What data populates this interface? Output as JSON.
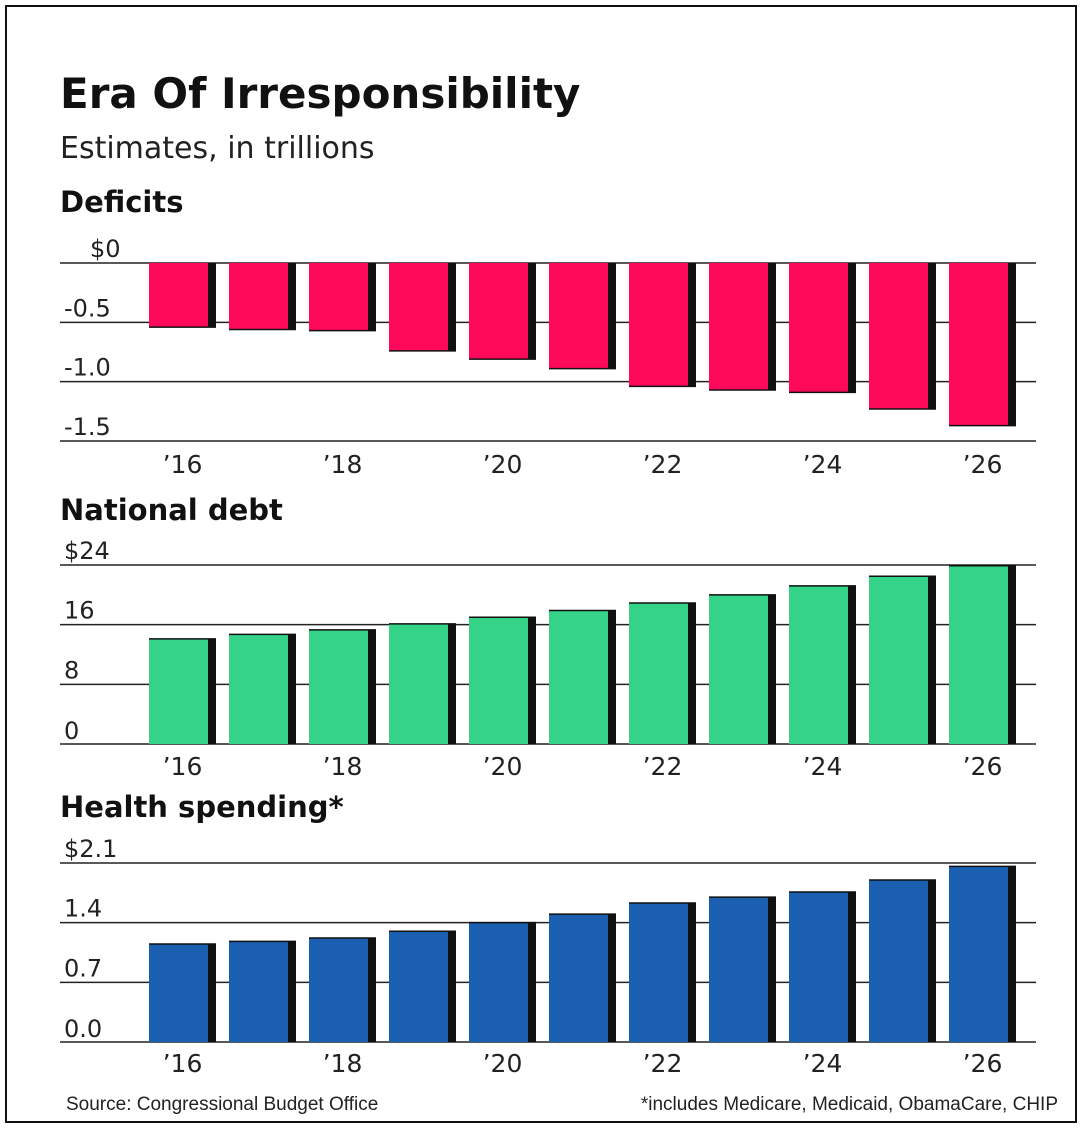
{
  "title": "Era Of Irresponsibility",
  "subtitle": "Estimates, in trillions",
  "source": "Source: Congressional Budget Office",
  "footnote": "*includes Medicare, Medicaid, ObamaCare, CHIP",
  "chart_data": [
    {
      "type": "bar",
      "title": "Deficits",
      "color": "#ff0a5a",
      "categories": [
        "2016",
        "2017",
        "2018",
        "2019",
        "2020",
        "2021",
        "2022",
        "2023",
        "2024",
        "2025",
        "2026"
      ],
      "x_tick_labels": [
        "’16",
        "",
        "’18",
        "",
        "’20",
        "",
        "’22",
        "",
        "’24",
        "",
        "’26"
      ],
      "values": [
        -0.54,
        -0.56,
        -0.57,
        -0.74,
        -0.81,
        -0.89,
        -1.04,
        -1.07,
        -1.09,
        -1.23,
        -1.37
      ],
      "y_ticks": [
        0,
        -0.5,
        -1.0,
        -1.5
      ],
      "y_tick_labels": [
        "$0",
        "-0.5",
        "-1.0",
        "-1.5"
      ],
      "ylim": [
        -1.5,
        0
      ]
    },
    {
      "type": "bar",
      "title": "National debt",
      "color": "#34d388",
      "categories": [
        "2016",
        "2017",
        "2018",
        "2019",
        "2020",
        "2021",
        "2022",
        "2023",
        "2024",
        "2025",
        "2026"
      ],
      "x_tick_labels": [
        "’16",
        "",
        "’18",
        "",
        "’20",
        "",
        "’22",
        "",
        "’24",
        "",
        "’26"
      ],
      "values": [
        14.1,
        14.7,
        15.3,
        16.1,
        17.0,
        17.9,
        18.9,
        20.0,
        21.2,
        22.5,
        23.9
      ],
      "y_ticks": [
        0,
        8,
        16,
        24
      ],
      "y_tick_labels": [
        "0",
        "8",
        "16",
        "$24"
      ],
      "ylim": [
        0,
        24
      ]
    },
    {
      "type": "bar",
      "title": "Health spending*",
      "color": "#1a5fb0",
      "categories": [
        "2016",
        "2017",
        "2018",
        "2019",
        "2020",
        "2021",
        "2022",
        "2023",
        "2024",
        "2025",
        "2026"
      ],
      "x_tick_labels": [
        "’16",
        "",
        "’18",
        "",
        "’20",
        "",
        "’22",
        "",
        "’24",
        "",
        "’26"
      ],
      "values": [
        1.15,
        1.18,
        1.22,
        1.3,
        1.4,
        1.5,
        1.63,
        1.7,
        1.76,
        1.9,
        2.06
      ],
      "y_ticks": [
        0,
        0.7,
        1.4,
        2.1
      ],
      "y_tick_labels": [
        "0.0",
        "0.7",
        "1.4",
        "$2.1"
      ],
      "ylim": [
        0,
        2.1
      ]
    }
  ]
}
